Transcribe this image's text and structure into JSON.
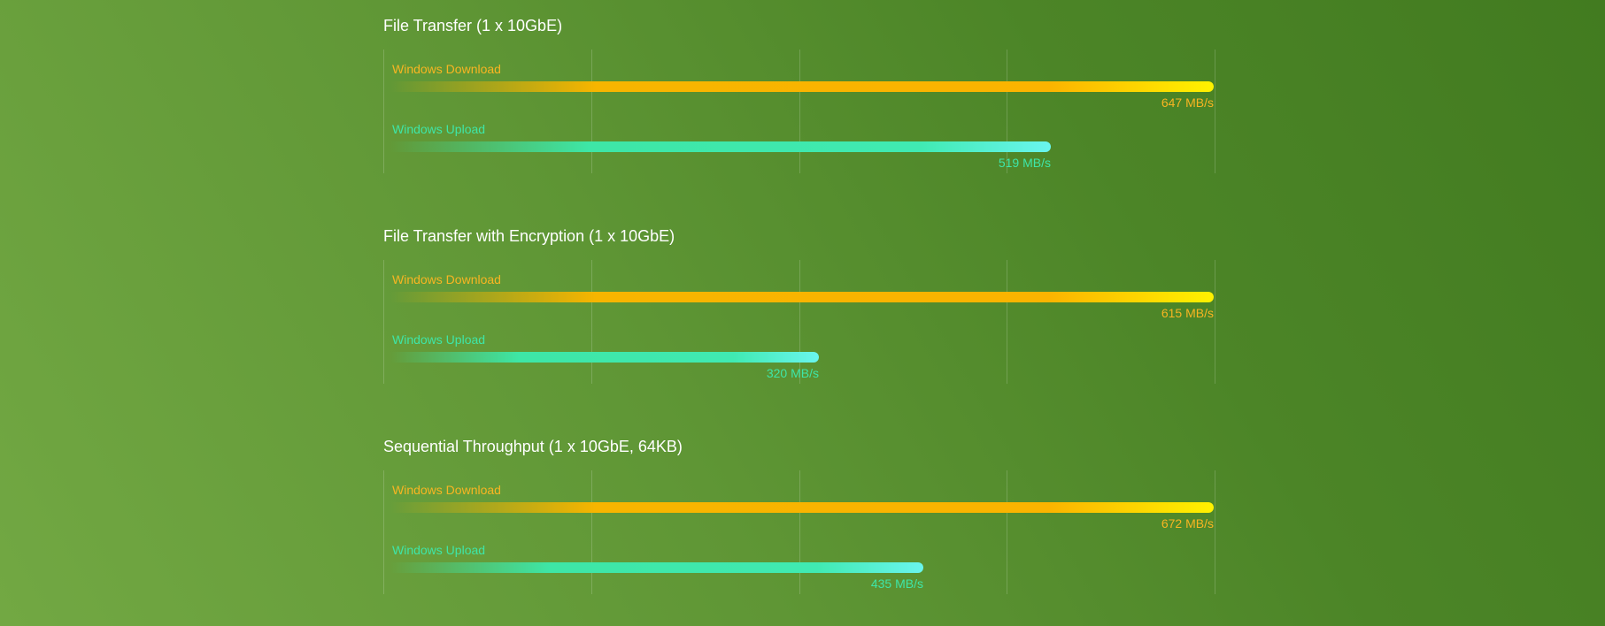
{
  "colors": {
    "download": "#f9b522",
    "upload": "#3ee6a8",
    "title": "#ffffff"
  },
  "chart_data": [
    {
      "type": "bar",
      "orientation": "horizontal",
      "title": "File Transfer (1 x 10GbE)",
      "unit": "MB/s",
      "xlim": [
        0,
        647
      ],
      "grid": true,
      "series": [
        {
          "name": "Windows Download",
          "value": 647,
          "value_label": "647 MB/s"
        },
        {
          "name": "Windows Upload",
          "value": 519,
          "value_label": "519 MB/s"
        }
      ]
    },
    {
      "type": "bar",
      "orientation": "horizontal",
      "title": "File Transfer with Encryption (1 x 10GbE)",
      "unit": "MB/s",
      "xlim": [
        0,
        615
      ],
      "grid": true,
      "series": [
        {
          "name": "Windows Download",
          "value": 615,
          "value_label": "615 MB/s"
        },
        {
          "name": "Windows Upload",
          "value": 320,
          "value_label": "320 MB/s"
        }
      ]
    },
    {
      "type": "bar",
      "orientation": "horizontal",
      "title": "Sequential Throughput (1 x 10GbE, 64KB)",
      "unit": "MB/s",
      "xlim": [
        0,
        672
      ],
      "grid": true,
      "series": [
        {
          "name": "Windows Download",
          "value": 672,
          "value_label": "672 MB/s"
        },
        {
          "name": "Windows Upload",
          "value": 435,
          "value_label": "435 MB/s"
        }
      ]
    }
  ]
}
